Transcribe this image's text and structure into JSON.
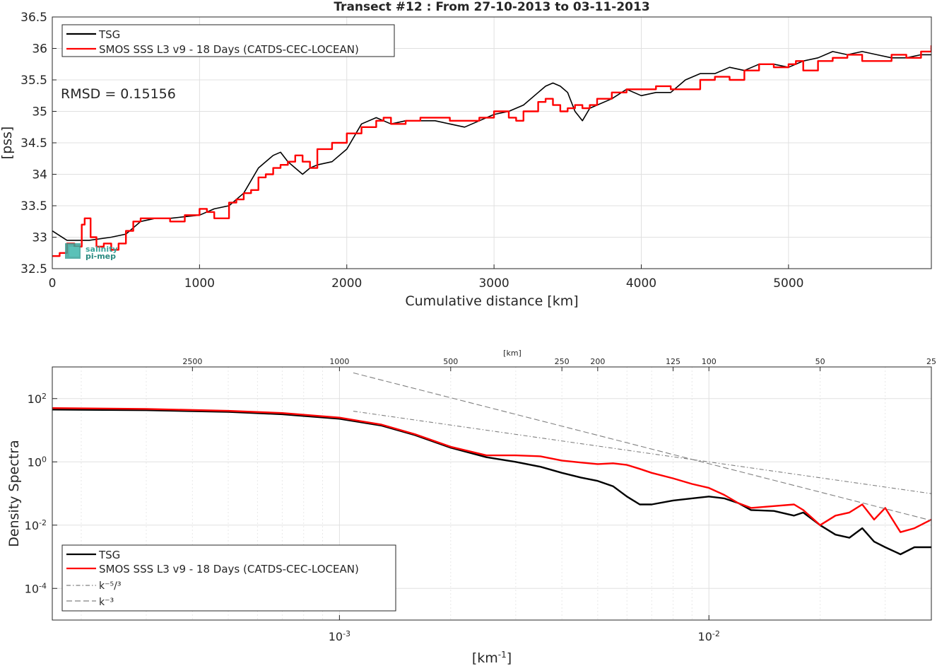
{
  "figure": {
    "title": "Transect #12 : From 27-10-2013 to 03-11-2013",
    "logo_text": [
      "salinity",
      "pi-mep"
    ]
  },
  "chart_data": [
    {
      "type": "line",
      "title": "Transect #12 : From 27-10-2013 to 03-11-2013",
      "xlabel": "Cumulative distance [km]",
      "ylabel": "[pss]",
      "xlim": [
        0,
        5970
      ],
      "ylim": [
        32.5,
        36.5
      ],
      "xticks": [
        0,
        1000,
        2000,
        3000,
        4000,
        5000
      ],
      "yticks": [
        32.5,
        33,
        33.5,
        34,
        34.5,
        35,
        35.5,
        36,
        36.5
      ],
      "grid": true,
      "legend_position": "top-left",
      "annotation": "RMSD = 0.15156",
      "series": [
        {
          "name": "TSG",
          "color": "#000000",
          "x": [
            0,
            100,
            250,
            400,
            500,
            600,
            700,
            800,
            1000,
            1100,
            1200,
            1300,
            1400,
            1500,
            1550,
            1600,
            1650,
            1700,
            1750,
            1800,
            1900,
            2000,
            2100,
            2200,
            2300,
            2400,
            2500,
            2600,
            2700,
            2800,
            2900,
            3000,
            3100,
            3200,
            3300,
            3350,
            3400,
            3450,
            3500,
            3550,
            3600,
            3650,
            3700,
            3800,
            3900,
            4000,
            4100,
            4200,
            4300,
            4400,
            4500,
            4600,
            4700,
            4800,
            4900,
            5000,
            5100,
            5200,
            5300,
            5400,
            5500,
            5600,
            5700,
            5800,
            5900,
            5970
          ],
          "y": [
            33.1,
            32.95,
            32.95,
            33.0,
            33.05,
            33.25,
            33.3,
            33.3,
            33.35,
            33.45,
            33.5,
            33.7,
            34.1,
            34.3,
            34.35,
            34.2,
            34.1,
            34.0,
            34.1,
            34.15,
            34.2,
            34.4,
            34.8,
            34.9,
            34.8,
            34.85,
            34.85,
            34.85,
            34.8,
            34.75,
            34.85,
            34.95,
            35.0,
            35.1,
            35.3,
            35.4,
            35.45,
            35.4,
            35.3,
            35.0,
            34.85,
            35.05,
            35.1,
            35.2,
            35.35,
            35.25,
            35.3,
            35.3,
            35.5,
            35.6,
            35.6,
            35.7,
            35.65,
            35.75,
            35.75,
            35.7,
            35.8,
            35.85,
            35.95,
            35.9,
            35.95,
            35.9,
            35.85,
            35.85,
            35.9,
            35.9
          ]
        },
        {
          "name": "SMOS SSS L3 v9 - 18 Days (CATDS-CEC-LOCEAN)",
          "color": "#ff0000",
          "x": [
            0,
            50,
            100,
            150,
            200,
            220,
            260,
            300,
            350,
            400,
            450,
            500,
            550,
            600,
            700,
            800,
            900,
            1000,
            1050,
            1100,
            1200,
            1250,
            1300,
            1350,
            1400,
            1450,
            1500,
            1550,
            1600,
            1650,
            1700,
            1750,
            1800,
            1900,
            2000,
            2100,
            2200,
            2250,
            2300,
            2400,
            2500,
            2600,
            2700,
            2800,
            2900,
            3000,
            3100,
            3150,
            3200,
            3300,
            3350,
            3400,
            3450,
            3500,
            3550,
            3600,
            3650,
            3700,
            3800,
            3900,
            4000,
            4100,
            4200,
            4300,
            4400,
            4500,
            4600,
            4700,
            4800,
            4900,
            5000,
            5050,
            5100,
            5200,
            5300,
            5400,
            5500,
            5600,
            5700,
            5800,
            5900,
            5970
          ],
          "y": [
            32.7,
            32.75,
            32.9,
            32.85,
            33.2,
            33.3,
            33.0,
            32.85,
            32.9,
            32.8,
            32.9,
            33.1,
            33.25,
            33.3,
            33.3,
            33.25,
            33.35,
            33.45,
            33.4,
            33.3,
            33.55,
            33.6,
            33.7,
            33.75,
            33.95,
            34.0,
            34.1,
            34.15,
            34.2,
            34.3,
            34.2,
            34.1,
            34.4,
            34.5,
            34.65,
            34.75,
            34.85,
            34.9,
            34.8,
            34.85,
            34.9,
            34.9,
            34.85,
            34.85,
            34.9,
            35.0,
            34.9,
            34.85,
            35.0,
            35.15,
            35.2,
            35.1,
            35.0,
            35.05,
            35.1,
            35.05,
            35.1,
            35.2,
            35.3,
            35.35,
            35.35,
            35.4,
            35.35,
            35.35,
            35.5,
            35.55,
            35.5,
            35.65,
            35.75,
            35.7,
            35.75,
            35.8,
            35.65,
            35.8,
            35.85,
            35.9,
            35.8,
            35.8,
            35.9,
            35.85,
            35.95,
            36.05
          ]
        }
      ]
    },
    {
      "type": "line",
      "xlabel": "[km⁻¹]",
      "ylabel": "Density Spectra",
      "x_scale": "log",
      "y_scale": "log",
      "xlim": [
        0.000167,
        0.04
      ],
      "ylim": [
        1e-05,
        1000
      ],
      "xticks": [
        0.001,
        0.01
      ],
      "xtick_labels": [
        "10⁻³",
        "10⁻²"
      ],
      "yticks": [
        0.0001,
        0.01,
        1,
        100
      ],
      "ytick_labels": [
        "10⁻⁴",
        "10⁻²",
        "10⁰",
        "10²"
      ],
      "top_axis": {
        "label": "[km]",
        "ticks_km": [
          2500,
          1000,
          500,
          250,
          200,
          125,
          100,
          50,
          25
        ]
      },
      "grid": true,
      "legend_position": "bottom-left",
      "series": [
        {
          "name": "TSG",
          "color": "#000000",
          "x": [
            0.000167,
            0.0003,
            0.0005,
            0.0007,
            0.001,
            0.0013,
            0.0016,
            0.002,
            0.0025,
            0.003,
            0.0035,
            0.004,
            0.0045,
            0.005,
            0.0055,
            0.006,
            0.0065,
            0.007,
            0.008,
            0.009,
            0.01,
            0.011,
            0.012,
            0.013,
            0.015,
            0.017,
            0.018,
            0.02,
            0.022,
            0.024,
            0.026,
            0.028,
            0.03,
            0.033,
            0.036,
            0.04
          ],
          "y": [
            45,
            43,
            38,
            32,
            23,
            14,
            7,
            2.8,
            1.4,
            1.0,
            0.7,
            0.45,
            0.32,
            0.25,
            0.17,
            0.08,
            0.045,
            0.045,
            0.06,
            0.07,
            0.08,
            0.07,
            0.05,
            0.03,
            0.028,
            0.02,
            0.025,
            0.01,
            0.005,
            0.004,
            0.008,
            0.003,
            0.002,
            0.0012,
            0.002,
            0.002
          ]
        },
        {
          "name": "SMOS SSS L3 v9 - 18 Days (CATDS-CEC-LOCEAN)",
          "color": "#ff0000",
          "x": [
            0.000167,
            0.0003,
            0.0005,
            0.0007,
            0.001,
            0.0013,
            0.0016,
            0.002,
            0.0025,
            0.003,
            0.0035,
            0.004,
            0.0045,
            0.005,
            0.0055,
            0.006,
            0.0065,
            0.007,
            0.008,
            0.009,
            0.01,
            0.011,
            0.012,
            0.013,
            0.015,
            0.017,
            0.018,
            0.02,
            0.022,
            0.024,
            0.026,
            0.028,
            0.03,
            0.033,
            0.036,
            0.04
          ],
          "y": [
            50,
            47,
            41,
            35,
            25,
            15,
            7.5,
            3.0,
            1.6,
            1.6,
            1.5,
            1.1,
            0.95,
            0.85,
            0.9,
            0.8,
            0.6,
            0.45,
            0.3,
            0.2,
            0.15,
            0.09,
            0.05,
            0.035,
            0.04,
            0.045,
            0.03,
            0.01,
            0.02,
            0.025,
            0.045,
            0.015,
            0.035,
            0.006,
            0.008,
            0.015
          ]
        },
        {
          "name": "k⁻⁵/³",
          "color": "#808080",
          "x": [
            0.00109,
            0.04
          ],
          "y": [
            40,
            0.099
          ]
        },
        {
          "name": "k⁻³",
          "color": "#808080",
          "x": [
            0.00109,
            0.04
          ],
          "y": [
            650,
            0.014
          ]
        }
      ]
    }
  ]
}
